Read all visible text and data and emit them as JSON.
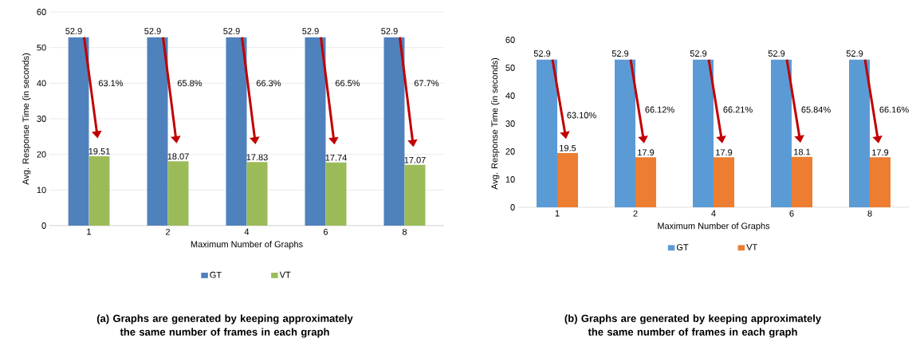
{
  "chart_data": [
    {
      "type": "bar",
      "categories": [
        "1",
        "2",
        "4",
        "6",
        "8"
      ],
      "xlabel": "Maximum Number of Graphs",
      "ylabel": "Avg. Response Time (in seconds)",
      "series": [
        {
          "name": "GT",
          "color": "#4f81bd",
          "values": [
            52.9,
            52.9,
            52.9,
            52.9,
            52.9
          ]
        },
        {
          "name": "VT",
          "color": "#9bbb59",
          "values": [
            19.51,
            18.07,
            17.83,
            17.74,
            17.07
          ]
        }
      ],
      "ylim": [
        0,
        60
      ],
      "yticks": [
        0,
        10,
        20,
        30,
        40,
        50,
        60
      ],
      "grid": "y",
      "legend": "bottom",
      "data_labels": true,
      "annotations": [
        {
          "text": "63.1%",
          "x": "1",
          "y": 40
        },
        {
          "text": "65.8%",
          "x": "2",
          "y": 40
        },
        {
          "text": "66.3%",
          "x": "4",
          "y": 40
        },
        {
          "text": "66.5%",
          "x": "6",
          "y": 40
        },
        {
          "text": "67.7%",
          "x": "8",
          "y": 40
        },
        "**(a) Graphs are generated by keeping approximately the same number of frames in each graph**"
      ]
    },
    {
      "type": "bar",
      "categories": [
        "1",
        "2",
        "4",
        "6",
        "8"
      ],
      "xlabel": "Maximum Number of Graphs",
      "ylabel": "Avg. Response Time (in seconds)",
      "series": [
        {
          "name": "GT",
          "color": "#5b9bd5",
          "values": [
            52.9,
            52.9,
            52.9,
            52.9,
            52.9
          ]
        },
        {
          "name": "VT",
          "color": "#ed7d31",
          "values": [
            19.5,
            17.9,
            17.9,
            18.1,
            17.9
          ]
        }
      ],
      "ylim": [
        0,
        60
      ],
      "yticks": [
        0,
        10,
        20,
        30,
        40,
        50,
        60
      ],
      "legend": "bottom",
      "data_labels": true,
      "annotations": [
        {
          "text": "63.10%",
          "x": "1",
          "y": 33
        },
        {
          "text": "66.12%",
          "x": "2",
          "y": 35
        },
        {
          "text": "66.21%",
          "x": "4",
          "y": 35
        },
        {
          "text": "65.84%",
          "x": "6",
          "y": 35
        },
        {
          "text": "66.16%",
          "x": "8",
          "y": 35
        },
        "**(b) Graphs are generated by keeping approximately the same number of frames in each graph**"
      ]
    }
  ]
}
